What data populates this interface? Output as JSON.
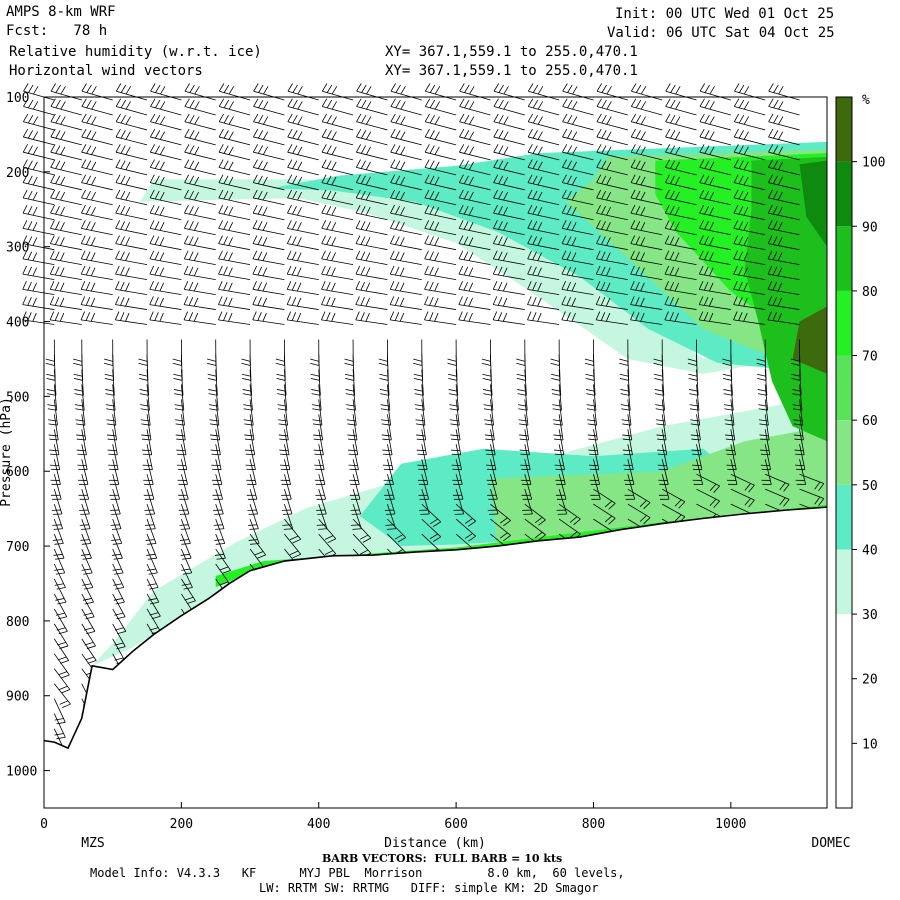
{
  "header": {
    "model": "AMPS 8-km WRF",
    "fcst": "Fcst:   78 h",
    "field1": "Relative humidity (w.r.t. ice)",
    "field2": "Horizontal wind vectors",
    "init": "Init: 00 UTC Wed 01 Oct 25",
    "valid": "Valid: 06 UTC Sat 04 Oct 25",
    "xy1": "XY= 367.1,559.1 to 255.0,470.1",
    "xy2": "XY= 367.1,559.1 to 255.0,470.1"
  },
  "footer": {
    "start_label": "MZS",
    "end_label": "DOMEC",
    "barb_note": "BARB VECTORS:  FULL BARB = 10 kts",
    "model_info": "Model Info: V4.3.3   KF      MYJ PBL  Morrison         8.0 km,  60 levels,",
    "physics": "LW: RRTM SW: RRTMG   DIFF: simple KM: 2D Smagor"
  },
  "chart_data": {
    "type": "heatmap",
    "title": "Relative humidity (w.r.t. ice)",
    "xlabel": "Distance (km)",
    "ylabel": "Pressure (hPa)",
    "xlim": [
      0,
      1140
    ],
    "ylim": [
      1050,
      100
    ],
    "x_ticks": [
      0,
      200,
      400,
      600,
      800,
      1000
    ],
    "y_ticks": [
      100,
      200,
      300,
      400,
      500,
      600,
      700,
      800,
      900,
      1000
    ],
    "colorbar": {
      "unit": "%",
      "ticks": [
        10,
        20,
        30,
        40,
        50,
        60,
        70,
        80,
        90,
        100
      ],
      "bins": [
        {
          "from": 0,
          "to": 10,
          "color": "#ffffff"
        },
        {
          "from": 10,
          "to": 20,
          "color": "#ffffff"
        },
        {
          "from": 20,
          "to": 30,
          "color": "#ffffff"
        },
        {
          "from": 30,
          "to": 40,
          "color": "#c4f6e0"
        },
        {
          "from": 40,
          "to": 50,
          "color": "#5cebc4"
        },
        {
          "from": 50,
          "to": 60,
          "color": "#86e686"
        },
        {
          "from": 60,
          "to": 70,
          "color": "#5ae25a"
        },
        {
          "from": 70,
          "to": 80,
          "color": "#24f024"
        },
        {
          "from": 80,
          "to": 90,
          "color": "#1dbf1d"
        },
        {
          "from": 90,
          "to": 100,
          "color": "#0e8a0e"
        },
        {
          "from": 100,
          "to": 110,
          "color": "#3e6a0e"
        }
      ]
    },
    "terrain_hpa": [
      {
        "x": 0,
        "p": 960
      },
      {
        "x": 15,
        "p": 962
      },
      {
        "x": 35,
        "p": 970
      },
      {
        "x": 55,
        "p": 930
      },
      {
        "x": 70,
        "p": 860
      },
      {
        "x": 100,
        "p": 865
      },
      {
        "x": 130,
        "p": 840
      },
      {
        "x": 160,
        "p": 818
      },
      {
        "x": 200,
        "p": 793
      },
      {
        "x": 240,
        "p": 770
      },
      {
        "x": 270,
        "p": 750
      },
      {
        "x": 300,
        "p": 733
      },
      {
        "x": 350,
        "p": 720
      },
      {
        "x": 420,
        "p": 713
      },
      {
        "x": 480,
        "p": 712
      },
      {
        "x": 540,
        "p": 708
      },
      {
        "x": 600,
        "p": 705
      },
      {
        "x": 660,
        "p": 700
      },
      {
        "x": 720,
        "p": 693
      },
      {
        "x": 780,
        "p": 688
      },
      {
        "x": 840,
        "p": 678
      },
      {
        "x": 900,
        "p": 670
      },
      {
        "x": 960,
        "p": 663
      },
      {
        "x": 1020,
        "p": 657
      },
      {
        "x": 1080,
        "p": 652
      },
      {
        "x": 1140,
        "p": 648
      }
    ],
    "rh_regions": [
      {
        "rh": 35,
        "points": [
          [
            930,
            180
          ],
          [
            1140,
            150
          ],
          [
            1140,
            350
          ],
          [
            1060,
            420
          ],
          [
            960,
            450
          ],
          [
            880,
            395
          ],
          [
            800,
            330
          ],
          [
            680,
            260
          ],
          [
            520,
            225
          ],
          [
            380,
            210
          ],
          [
            160,
            210
          ],
          [
            140,
            240
          ],
          [
            370,
            235
          ],
          [
            470,
            255
          ],
          [
            600,
            295
          ],
          [
            700,
            355
          ],
          [
            780,
            405
          ],
          [
            850,
            450
          ],
          [
            960,
            470
          ],
          [
            1140,
            440
          ],
          [
            1140,
            500
          ],
          [
            900,
            540
          ],
          [
            700,
            590
          ],
          [
            520,
            612
          ],
          [
            380,
            650
          ],
          [
            280,
            695
          ],
          [
            160,
            760
          ],
          [
            100,
            830
          ],
          [
            70,
            860
          ],
          [
            130,
            835
          ],
          [
            240,
            770
          ],
          [
            420,
            713
          ],
          [
            640,
            702
          ],
          [
            820,
            685
          ],
          [
            1000,
            658
          ],
          [
            1140,
            648
          ],
          [
            1140,
            150
          ]
        ]
      },
      {
        "rh": 45,
        "points": [
          [
            720,
            175
          ],
          [
            1140,
            160
          ],
          [
            1140,
            470
          ],
          [
            980,
            455
          ],
          [
            880,
            410
          ],
          [
            780,
            340
          ],
          [
            660,
            280
          ],
          [
            540,
            240
          ],
          [
            420,
            225
          ],
          [
            330,
            222
          ],
          [
            430,
            205
          ],
          [
            600,
            192
          ],
          [
            720,
            175
          ]
        ]
      },
      {
        "rh": 45,
        "points": [
          [
            520,
            590
          ],
          [
            640,
            570
          ],
          [
            800,
            580
          ],
          [
            960,
            570
          ],
          [
            1000,
            600
          ],
          [
            1000,
            650
          ],
          [
            900,
            668
          ],
          [
            800,
            680
          ],
          [
            700,
            692
          ],
          [
            600,
            698
          ],
          [
            520,
            700
          ],
          [
            460,
            660
          ]
        ]
      },
      {
        "rh": 55,
        "points": [
          [
            820,
            180
          ],
          [
            1140,
            170
          ],
          [
            1140,
            460
          ],
          [
            1040,
            440
          ],
          [
            960,
            410
          ],
          [
            890,
            350
          ],
          [
            820,
            290
          ],
          [
            760,
            240
          ],
          [
            800,
            210
          ]
        ]
      },
      {
        "rh": 55,
        "points": [
          [
            650,
            610
          ],
          [
            900,
            600
          ],
          [
            1020,
            560
          ],
          [
            1140,
            540
          ],
          [
            1140,
            648
          ],
          [
            1000,
            658
          ],
          [
            880,
            672
          ],
          [
            760,
            688
          ],
          [
            660,
            696
          ]
        ]
      },
      {
        "rh": 75,
        "points": [
          [
            890,
            185
          ],
          [
            1140,
            175
          ],
          [
            1140,
            420
          ],
          [
            1060,
            400
          ],
          [
            1000,
            360
          ],
          [
            960,
            320
          ],
          [
            920,
            280
          ],
          [
            890,
            230
          ]
        ]
      },
      {
        "rh": 75,
        "points": [
          [
            250,
            740
          ],
          [
            320,
            720
          ],
          [
            600,
            702
          ],
          [
            900,
            668
          ],
          [
            1140,
            645
          ],
          [
            1140,
            652
          ],
          [
            900,
            673
          ],
          [
            600,
            707
          ],
          [
            320,
            728
          ],
          [
            250,
            755
          ]
        ]
      },
      {
        "rh": 85,
        "points": [
          [
            1030,
            185
          ],
          [
            1140,
            180
          ],
          [
            1140,
            560
          ],
          [
            1090,
            540
          ],
          [
            1060,
            480
          ],
          [
            1040,
            400
          ],
          [
            1020,
            330
          ],
          [
            1030,
            250
          ]
        ]
      },
      {
        "rh": 95,
        "points": [
          [
            1100,
            190
          ],
          [
            1140,
            185
          ],
          [
            1140,
            300
          ],
          [
            1110,
            260
          ]
        ]
      },
      {
        "rh": 105,
        "points": [
          [
            1100,
            400
          ],
          [
            1140,
            380
          ],
          [
            1140,
            470
          ],
          [
            1090,
            450
          ]
        ]
      }
    ],
    "barbs": {
      "columns_x": [
        15,
        55,
        100,
        150,
        200,
        250,
        300,
        350,
        400,
        450,
        500,
        550,
        600,
        650,
        700,
        750,
        800,
        850,
        900,
        950,
        1000,
        1050,
        1100
      ],
      "level_step_hpa": 20,
      "full_barb_kts": 10
    }
  }
}
